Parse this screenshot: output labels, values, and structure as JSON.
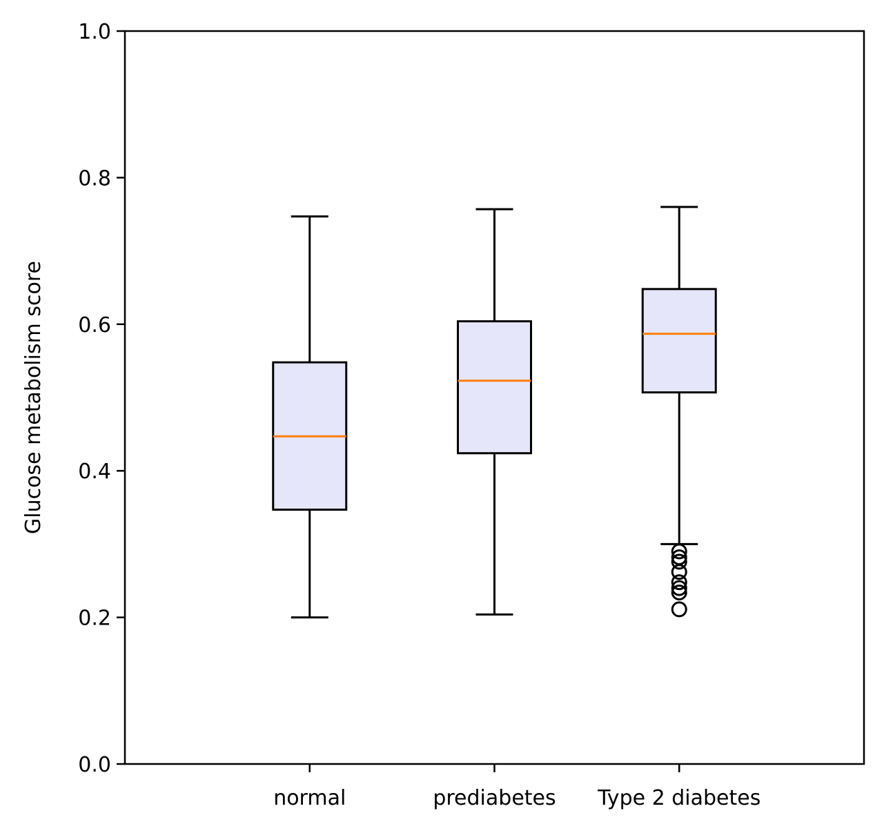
{
  "chart_data": {
    "type": "box",
    "title": "",
    "xlabel": "",
    "ylabel": "Glucose metabolism score",
    "ylim": [
      0.0,
      1.0
    ],
    "yticks": [
      0.0,
      0.2,
      0.4,
      0.6,
      0.8,
      1.0
    ],
    "ytick_labels": [
      "0.0",
      "0.2",
      "0.4",
      "0.6",
      "0.8",
      "1.0"
    ],
    "categories": [
      "normal",
      "prediabetes",
      "Type 2 diabetes"
    ],
    "boxes": [
      {
        "category": "normal",
        "whisker_low": 0.2,
        "q1": 0.347,
        "median": 0.447,
        "q3": 0.548,
        "whisker_high": 0.747,
        "outliers": []
      },
      {
        "category": "prediabetes",
        "whisker_low": 0.204,
        "q1": 0.424,
        "median": 0.523,
        "q3": 0.604,
        "whisker_high": 0.757,
        "outliers": []
      },
      {
        "category": "Type 2 diabetes",
        "whisker_low": 0.3,
        "q1": 0.507,
        "median": 0.587,
        "q3": 0.648,
        "whisker_high": 0.76,
        "outliers": [
          0.29,
          0.282,
          0.276,
          0.262,
          0.248,
          0.24,
          0.234,
          0.211
        ]
      }
    ],
    "grid": false,
    "colors": {
      "box_fill": "#e6e6fa",
      "median": "#ff7f0e",
      "stroke": "#000000"
    }
  }
}
